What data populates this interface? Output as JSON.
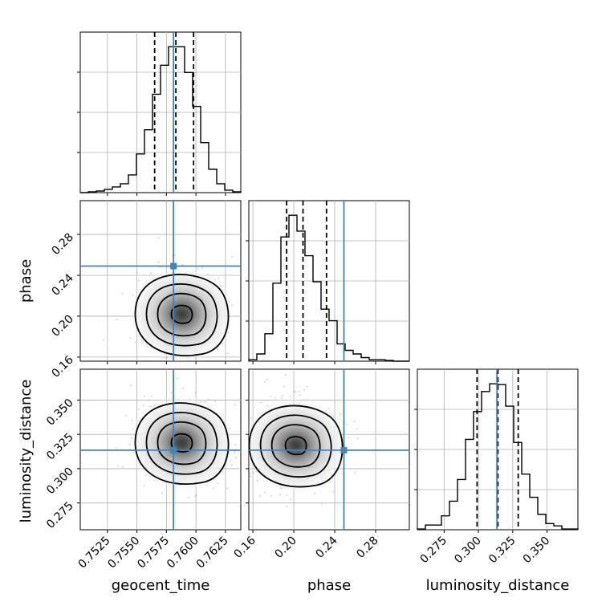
{
  "chart_data": {
    "type": "corner",
    "parameters": [
      "geocent_time",
      "phase",
      "luminosity_distance"
    ],
    "truths": {
      "geocent_time": 0.7581,
      "phase": 0.249,
      "luminosity_distance": 0.3135
    },
    "colors": {
      "truth": "#4682b4",
      "hist": "#000000",
      "grid": "#b0b0b0",
      "samples": "#9a9a9a"
    },
    "grid": true,
    "ranges": {
      "geocent_time": [
        0.7502,
        0.7638
      ],
      "phase": [
        0.156,
        0.313
      ],
      "luminosity_distance": [
        0.2555,
        0.3725
      ]
    },
    "ticks": {
      "geocent_time": {
        "values": [
          0.7525,
          0.755,
          0.7575,
          0.76,
          0.7625
        ],
        "labels": [
          "0.7525",
          "0.7550",
          "0.7575",
          "0.7600",
          "0.7625"
        ]
      },
      "phase": {
        "values": [
          0.16,
          0.2,
          0.24,
          0.28
        ],
        "labels": [
          "0.16",
          "0.20",
          "0.24",
          "0.28"
        ]
      },
      "luminosity_distance": {
        "values": [
          0.275,
          0.3,
          0.325,
          0.35
        ],
        "labels": [
          "0.275",
          "0.300",
          "0.325",
          "0.350"
        ]
      }
    },
    "quantiles": {
      "geocent_time": [
        0.7565,
        0.7583,
        0.7598
      ],
      "phase": [
        0.193,
        0.209,
        0.232
      ],
      "luminosity_distance": [
        0.299,
        0.3142,
        0.329
      ]
    },
    "marginals": {
      "geocent_time": {
        "edges": [
          0.7502,
          0.75088,
          0.75156,
          0.75224,
          0.75292,
          0.7536,
          0.75428,
          0.75496,
          0.75564,
          0.75632,
          0.757,
          0.75768,
          0.75836,
          0.75904,
          0.75972,
          0.7604,
          0.76108,
          0.76176,
          0.76244,
          0.76312,
          0.7638
        ],
        "counts": [
          0,
          1,
          2,
          4,
          7,
          11,
          22,
          48,
          78,
          122,
          158,
          181,
          181,
          149,
          107,
          62,
          29,
          11,
          3,
          1
        ]
      },
      "phase": {
        "edges": [
          0.156,
          0.16385,
          0.1717,
          0.17955,
          0.1874,
          0.19525,
          0.2031,
          0.21095,
          0.2188,
          0.22665,
          0.2345,
          0.24235,
          0.2502,
          0.25805,
          0.2659,
          0.27375,
          0.2816,
          0.28945,
          0.2973,
          0.30515,
          0.313
        ],
        "counts": [
          2,
          10,
          38,
          108,
          172,
          202,
          180,
          146,
          110,
          72,
          56,
          24,
          15,
          10,
          5,
          2,
          2,
          1,
          0,
          0
        ]
      },
      "luminosity_distance": {
        "edges": [
          0.2555,
          0.26135,
          0.2672,
          0.27305,
          0.2789,
          0.28475,
          0.2906,
          0.29645,
          0.3023,
          0.30815,
          0.314,
          0.31985,
          0.3257,
          0.33155,
          0.3374,
          0.34325,
          0.3491,
          0.35495,
          0.3608,
          0.36665,
          0.3725
        ],
        "counts": [
          1,
          6,
          6,
          18,
          37,
          65,
          117,
          153,
          179,
          189,
          188,
          160,
          113,
          72,
          42,
          20,
          8,
          5,
          1,
          1
        ]
      }
    },
    "contour_peaks": {
      "phase_vs_geocent_time": {
        "x": 0.7588,
        "y": 0.202
      },
      "luminosity_distance_vs_geocent_time": {
        "x": 0.7588,
        "y": 0.319
      },
      "luminosity_distance_vs_phase": {
        "x": 0.202,
        "y": 0.317
      }
    }
  }
}
